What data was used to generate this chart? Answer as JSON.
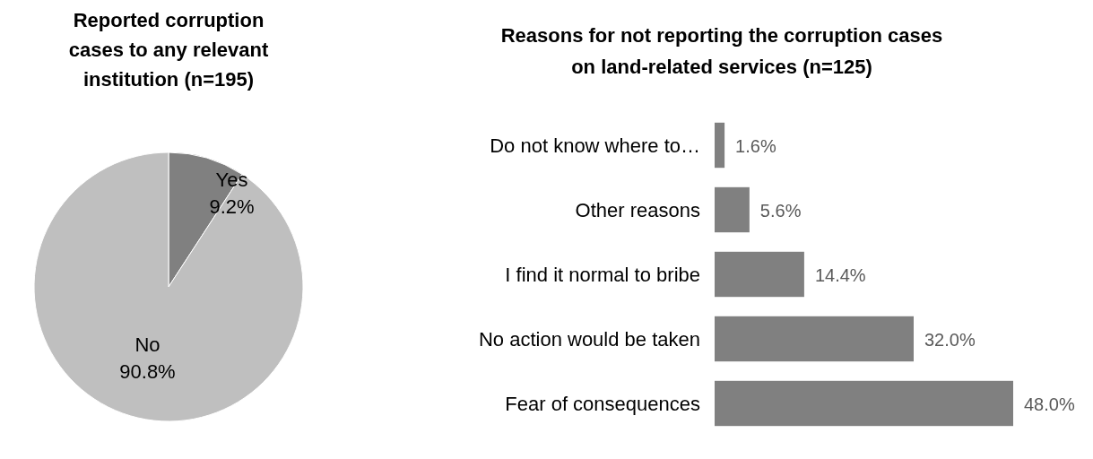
{
  "chart_data": [
    {
      "type": "pie",
      "title": "Reported corruption cases to any relevant institution (n=195)",
      "categories": [
        "Yes",
        "No"
      ],
      "values": [
        9.2,
        90.8
      ],
      "colors": [
        "#808080",
        "#bfbfbf"
      ],
      "value_labels": [
        "9.2%",
        "90.8%"
      ]
    },
    {
      "type": "bar",
      "orientation": "horizontal",
      "title": "Reasons for not reporting the corruption cases on land-related services  (n=125)",
      "categories": [
        "Do not know where to…",
        "Other reasons",
        "I find it normal to bribe",
        "No action would be taken",
        "Fear of consequences"
      ],
      "values": [
        1.6,
        5.6,
        14.4,
        32.0,
        48.0
      ],
      "color": "#808080",
      "value_labels": [
        "1.6%",
        "5.6%",
        "14.4%",
        "32.0%",
        "48.0%"
      ]
    }
  ]
}
